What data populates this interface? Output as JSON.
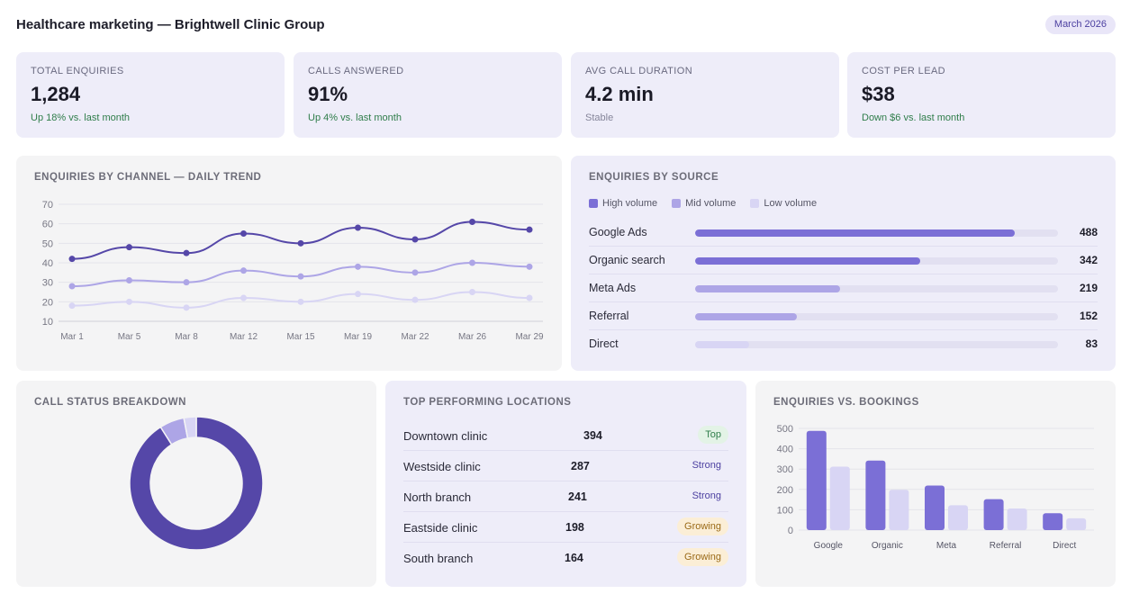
{
  "header": {
    "title": "Healthcare marketing — Brightwell Clinic Group",
    "period": "March 2026"
  },
  "kpis": [
    {
      "label": "TOTAL ENQUIRIES",
      "value": "1,284",
      "delta": "Up 18% vs. last month",
      "tone": "good"
    },
    {
      "label": "CALLS ANSWERED",
      "value": "91%",
      "delta": "Up 4% vs. last month",
      "tone": "good"
    },
    {
      "label": "AVG CALL DURATION",
      "value": "4.2 min",
      "delta": "Stable",
      "tone": "neutral"
    },
    {
      "label": "COST PER LEAD",
      "value": "$38",
      "delta": "Down $6 vs. last month",
      "tone": "good"
    }
  ],
  "trend": {
    "title": "ENQUIRIES BY CHANNEL — DAILY TREND"
  },
  "sources": {
    "title": "ENQUIRIES BY SOURCE",
    "legend": [
      {
        "label": "High volume",
        "color": "#7b6fd6"
      },
      {
        "label": "Mid volume",
        "color": "#ada5e6"
      },
      {
        "label": "Low volume",
        "color": "#d8d5f4"
      }
    ],
    "rows": [
      {
        "name": "Google Ads",
        "value": "488",
        "fill_pct": 88,
        "color": "#7b6fd6"
      },
      {
        "name": "Organic search",
        "value": "342",
        "fill_pct": 62,
        "color": "#7b6fd6"
      },
      {
        "name": "Meta Ads",
        "value": "219",
        "fill_pct": 40,
        "color": "#ada5e6"
      },
      {
        "name": "Referral",
        "value": "152",
        "fill_pct": 28,
        "color": "#ada5e6"
      },
      {
        "name": "Direct",
        "value": "83",
        "fill_pct": 15,
        "color": "#d8d5f4"
      }
    ]
  },
  "call_status": {
    "title": "CALL STATUS BREAKDOWN"
  },
  "locations": {
    "title": "TOP PERFORMING LOCATIONS",
    "rows": [
      {
        "name": "Downtown clinic",
        "value": "394",
        "badge": "Top",
        "badge_type": "top"
      },
      {
        "name": "Westside clinic",
        "value": "287",
        "badge": "Strong",
        "badge_type": "strong"
      },
      {
        "name": "North branch",
        "value": "241",
        "badge": "Strong",
        "badge_type": "strong"
      },
      {
        "name": "Eastside clinic",
        "value": "198",
        "badge": "Growing",
        "badge_type": "growing"
      },
      {
        "name": "South branch",
        "value": "164",
        "badge": "Growing",
        "badge_type": "growing"
      }
    ]
  },
  "bookings": {
    "title": "ENQUIRIES VS. BOOKINGS"
  },
  "chart_data": [
    {
      "type": "line",
      "x": [
        "Mar 1",
        "Mar 5",
        "Mar 8",
        "Mar 12",
        "Mar 15",
        "Mar 19",
        "Mar 22",
        "Mar 26",
        "Mar 29"
      ],
      "ylim": [
        10,
        70
      ],
      "yticks": [
        10,
        20,
        30,
        40,
        50,
        60,
        70
      ],
      "grid": true,
      "series": [
        {
          "values": [
            42,
            48,
            45,
            55,
            50,
            58,
            52,
            61,
            57
          ],
          "color": "#5547a8"
        },
        {
          "values": [
            28,
            31,
            30,
            36,
            33,
            38,
            35,
            40,
            38
          ],
          "color": "#ada5e6"
        },
        {
          "values": [
            18,
            20,
            17,
            22,
            20,
            24,
            21,
            25,
            22
          ],
          "color": "#d8d5f4"
        }
      ]
    },
    {
      "type": "pie",
      "donut": true,
      "slices": [
        {
          "value": 91,
          "color": "#5547a8"
        },
        {
          "value": 6,
          "color": "#ada5e6"
        },
        {
          "value": 3,
          "color": "#d8d5f4"
        }
      ]
    },
    {
      "type": "bar",
      "categories": [
        "Google",
        "Organic",
        "Meta",
        "Referral",
        "Direct"
      ],
      "ylim": [
        0,
        500
      ],
      "yticks": [
        0,
        100,
        200,
        300,
        400,
        500
      ],
      "grid": true,
      "series": [
        {
          "values": [
            488,
            342,
            219,
            152,
            83
          ],
          "color": "#7b6fd6"
        },
        {
          "values": [
            312,
            198,
            122,
            106,
            58
          ],
          "color": "#d8d5f4"
        }
      ]
    }
  ]
}
